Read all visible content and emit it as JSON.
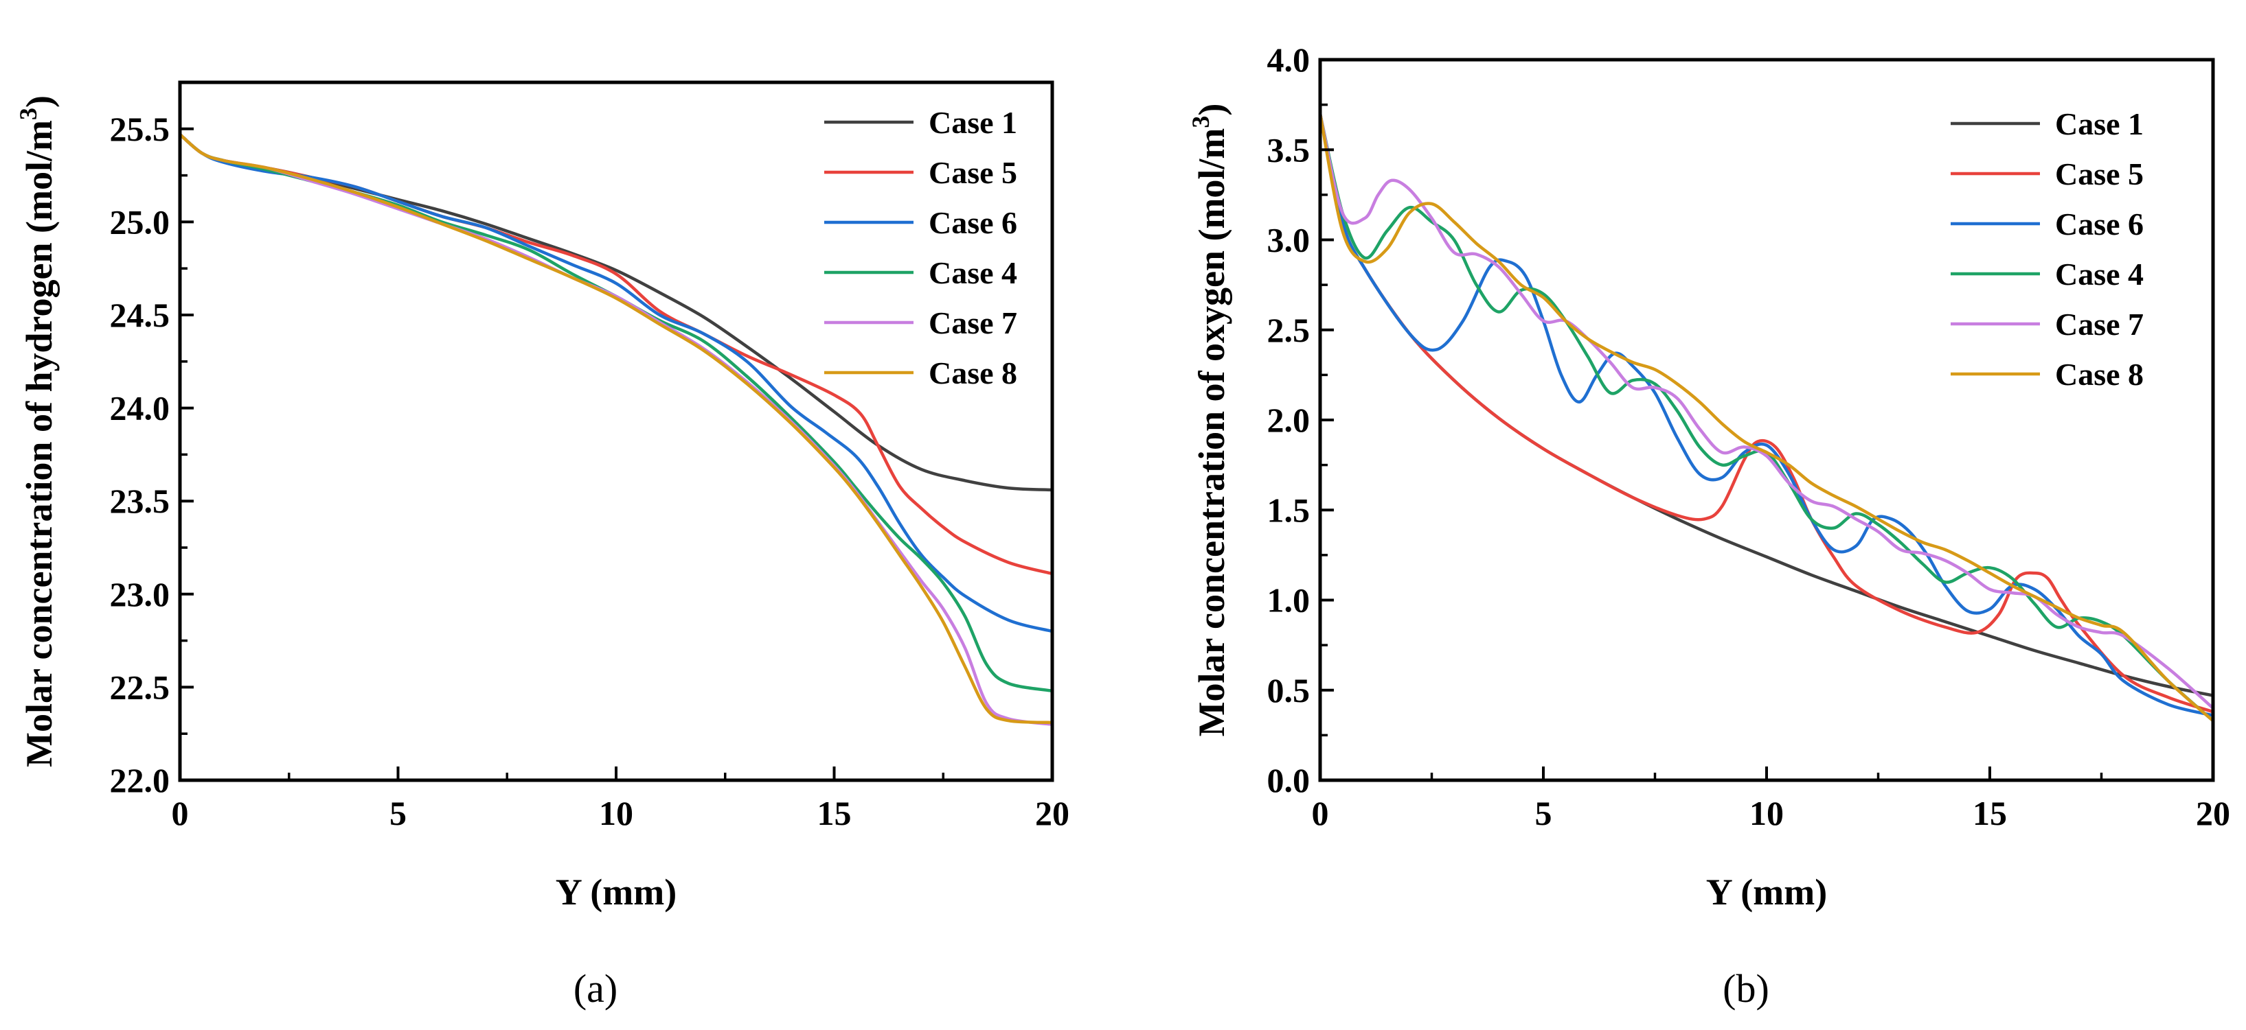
{
  "chart_data": [
    {
      "type": "line",
      "panel_label": "(a)",
      "xlabel": "Y (mm)",
      "ylabel_prefix": "Molar concentration of hydrogen (mol/m",
      "ylabel_sup": "3",
      "ylabel_suffix": ")",
      "xlim": [
        0,
        20
      ],
      "ylim": [
        22.0,
        25.75
      ],
      "xticks": [
        0,
        5,
        10,
        15,
        20
      ],
      "xtick_labels": [
        "0",
        "5",
        "10",
        "15",
        "20"
      ],
      "yticks": [
        22.0,
        22.5,
        23.0,
        23.5,
        24.0,
        24.5,
        25.0,
        25.5
      ],
      "ytick_labels": [
        "22.0",
        "22.5",
        "23.0",
        "23.5",
        "24.0",
        "24.5",
        "25.0",
        "25.5"
      ],
      "legend_position": "top-right",
      "series": [
        {
          "name": "Case 1",
          "color": "#404040",
          "x": [
            0,
            0.5,
            1,
            2,
            3,
            4,
            5,
            6,
            7,
            8,
            9,
            10,
            11,
            12,
            13,
            14,
            15,
            16,
            17,
            18,
            19,
            20
          ],
          "y": [
            25.47,
            25.37,
            25.33,
            25.29,
            25.24,
            25.18,
            25.12,
            25.06,
            24.99,
            24.91,
            24.83,
            24.74,
            24.62,
            24.49,
            24.33,
            24.16,
            23.98,
            23.8,
            23.67,
            23.61,
            23.57,
            23.56
          ]
        },
        {
          "name": "Case 5",
          "color": "#e8423c",
          "x": [
            0,
            0.5,
            1,
            2,
            3,
            4,
            5,
            6,
            7,
            8,
            9,
            10,
            11,
            12,
            13,
            14,
            15,
            15.6,
            16,
            16.5,
            17,
            17.5,
            18,
            19,
            20
          ],
          "y": [
            25.47,
            25.37,
            25.33,
            25.29,
            25.24,
            25.19,
            25.11,
            25.03,
            24.97,
            24.89,
            24.82,
            24.72,
            24.52,
            24.4,
            24.28,
            24.18,
            24.07,
            23.97,
            23.8,
            23.58,
            23.46,
            23.36,
            23.28,
            23.17,
            23.11
          ]
        },
        {
          "name": "Case 6",
          "color": "#1f6fd1",
          "x": [
            0,
            0.5,
            1,
            2,
            3,
            4,
            5,
            6,
            7,
            8,
            9,
            10,
            11,
            12,
            13,
            14,
            14.8,
            15.5,
            16,
            16.5,
            17,
            17.5,
            18,
            19,
            20
          ],
          "y": [
            25.47,
            25.37,
            25.32,
            25.27,
            25.24,
            25.19,
            25.11,
            25.03,
            24.97,
            24.87,
            24.77,
            24.67,
            24.5,
            24.4,
            24.25,
            24.01,
            23.87,
            23.74,
            23.58,
            23.38,
            23.21,
            23.09,
            22.99,
            22.86,
            22.8
          ]
        },
        {
          "name": "Case 4",
          "color": "#1ea366",
          "x": [
            0,
            0.5,
            1,
            2,
            3,
            4,
            5,
            6,
            7,
            8,
            9,
            10,
            11,
            12,
            13,
            14,
            15,
            15.5,
            16,
            16.5,
            17,
            17.5,
            18,
            18.5,
            19,
            20
          ],
          "y": [
            25.47,
            25.37,
            25.33,
            25.28,
            25.22,
            25.16,
            25.09,
            25.0,
            24.93,
            24.85,
            24.72,
            24.6,
            24.47,
            24.36,
            24.17,
            23.95,
            23.71,
            23.57,
            23.43,
            23.3,
            23.19,
            23.06,
            22.88,
            22.62,
            22.52,
            22.48
          ]
        },
        {
          "name": "Case 7",
          "color": "#c87ee0",
          "x": [
            0,
            0.5,
            1,
            2,
            3,
            4,
            5,
            6,
            7,
            8,
            9,
            10,
            11,
            12,
            13,
            14,
            15,
            15.5,
            16,
            16.5,
            17,
            17.5,
            18,
            18.5,
            19,
            20
          ],
          "y": [
            25.47,
            25.37,
            25.33,
            25.29,
            25.22,
            25.15,
            25.07,
            24.99,
            24.91,
            24.81,
            24.7,
            24.6,
            24.46,
            24.32,
            24.14,
            23.93,
            23.69,
            23.55,
            23.39,
            23.23,
            23.07,
            22.92,
            22.71,
            22.41,
            22.33,
            22.3
          ]
        },
        {
          "name": "Case 8",
          "color": "#d79a17",
          "x": [
            0,
            0.5,
            1,
            2,
            3,
            4,
            5,
            6,
            7,
            8,
            9,
            10,
            11,
            12,
            13,
            14,
            15,
            15.5,
            16,
            16.5,
            17,
            17.5,
            18,
            18.5,
            19,
            20
          ],
          "y": [
            25.47,
            25.37,
            25.33,
            25.29,
            25.23,
            25.16,
            25.08,
            24.99,
            24.9,
            24.8,
            24.7,
            24.59,
            24.45,
            24.31,
            24.13,
            23.92,
            23.68,
            23.54,
            23.38,
            23.21,
            23.04,
            22.85,
            22.61,
            22.38,
            22.32,
            22.31
          ]
        }
      ]
    },
    {
      "type": "line",
      "panel_label": "(b)",
      "xlabel": "Y (mm)",
      "ylabel_prefix": "Molar concentration of oxygen (mol/m",
      "ylabel_sup": "3",
      "ylabel_suffix": ")",
      "xlim": [
        0,
        20
      ],
      "ylim": [
        0.0,
        4.0
      ],
      "xticks": [
        0,
        5,
        10,
        15,
        20
      ],
      "xtick_labels": [
        "0",
        "5",
        "10",
        "15",
        "20"
      ],
      "yticks": [
        0.0,
        0.5,
        1.0,
        1.5,
        2.0,
        2.5,
        3.0,
        3.5,
        4.0
      ],
      "ytick_labels": [
        "0.0",
        "0.5",
        "1.0",
        "1.5",
        "2.0",
        "2.5",
        "3.0",
        "3.5",
        "4.0"
      ],
      "legend_position": "top-right",
      "series": [
        {
          "name": "Case 1",
          "color": "#404040",
          "x": [
            0,
            0.5,
            1,
            2,
            3,
            4,
            5,
            6,
            7,
            8,
            9,
            10,
            11,
            12,
            13,
            14,
            15,
            16,
            17,
            18,
            19,
            20
          ],
          "y": [
            3.7,
            3.1,
            2.84,
            2.48,
            2.22,
            2.01,
            1.84,
            1.7,
            1.57,
            1.45,
            1.34,
            1.24,
            1.14,
            1.05,
            0.96,
            0.88,
            0.8,
            0.72,
            0.65,
            0.58,
            0.52,
            0.47
          ]
        },
        {
          "name": "Case 5",
          "color": "#e8423c",
          "x": [
            0,
            0.5,
            1,
            2,
            3,
            4,
            5,
            6,
            7,
            8,
            8.6,
            9,
            9.5,
            9.8,
            10.2,
            10.6,
            11,
            11.5,
            12,
            13,
            14,
            14.7,
            15.2,
            15.6,
            16,
            16.3,
            16.6,
            17,
            18,
            19,
            20
          ],
          "y": [
            3.7,
            3.1,
            2.84,
            2.48,
            2.22,
            2.01,
            1.84,
            1.7,
            1.57,
            1.47,
            1.45,
            1.52,
            1.78,
            1.88,
            1.85,
            1.68,
            1.45,
            1.24,
            1.08,
            0.94,
            0.85,
            0.82,
            0.92,
            1.12,
            1.15,
            1.12,
            1.0,
            0.86,
            0.58,
            0.46,
            0.38
          ]
        },
        {
          "name": "Case 6",
          "color": "#1f6fd1",
          "x": [
            0,
            0.5,
            1,
            2,
            2.6,
            3.2,
            3.8,
            4.2,
            4.6,
            5.0,
            5.4,
            5.8,
            6.2,
            6.6,
            7.0,
            7.5,
            8.0,
            8.5,
            9.0,
            9.5,
            10.0,
            10.5,
            11.0,
            11.5,
            12.0,
            12.4,
            12.8,
            13.2,
            13.6,
            14.0,
            14.5,
            15.0,
            15.5,
            16.0,
            16.5,
            17.0,
            17.5,
            18.0,
            19.0,
            20.0
          ],
          "y": [
            3.7,
            3.1,
            2.84,
            2.48,
            2.39,
            2.55,
            2.85,
            2.88,
            2.8,
            2.55,
            2.25,
            2.1,
            2.25,
            2.37,
            2.3,
            2.15,
            1.9,
            1.7,
            1.68,
            1.82,
            1.86,
            1.7,
            1.45,
            1.28,
            1.3,
            1.45,
            1.45,
            1.38,
            1.25,
            1.08,
            0.94,
            0.95,
            1.08,
            1.06,
            0.95,
            0.8,
            0.7,
            0.55,
            0.42,
            0.36
          ]
        },
        {
          "name": "Case 4",
          "color": "#1ea366",
          "x": [
            0,
            0.5,
            1,
            1.5,
            2,
            2.5,
            3,
            3.5,
            4,
            4.5,
            5,
            5.5,
            6,
            6.5,
            7,
            7.5,
            8,
            8.5,
            9,
            9.5,
            10,
            10.5,
            11,
            11.5,
            12,
            12.5,
            13,
            13.5,
            14,
            14.5,
            15,
            15.5,
            16,
            16.5,
            17,
            17.5,
            18,
            19,
            20
          ],
          "y": [
            3.7,
            3.15,
            2.9,
            3.05,
            3.18,
            3.1,
            3.0,
            2.75,
            2.6,
            2.72,
            2.7,
            2.55,
            2.35,
            2.15,
            2.22,
            2.2,
            2.05,
            1.85,
            1.75,
            1.8,
            1.82,
            1.65,
            1.45,
            1.4,
            1.48,
            1.42,
            1.32,
            1.2,
            1.1,
            1.15,
            1.18,
            1.12,
            0.98,
            0.85,
            0.9,
            0.88,
            0.8,
            0.55,
            0.33
          ]
        },
        {
          "name": "Case 7",
          "color": "#c87ee0",
          "x": [
            0,
            0.5,
            1,
            1.3,
            1.6,
            2,
            2.5,
            3,
            3.5,
            4,
            4.5,
            5,
            5.5,
            6,
            6.5,
            7,
            7.5,
            8,
            8.5,
            9,
            9.5,
            10,
            10.5,
            11,
            11.5,
            12,
            12.5,
            13,
            13.5,
            14,
            14.5,
            15,
            15.5,
            16,
            16.5,
            17,
            17.5,
            18,
            19,
            20
          ],
          "y": [
            3.7,
            3.15,
            3.12,
            3.25,
            3.33,
            3.28,
            3.12,
            2.93,
            2.92,
            2.85,
            2.7,
            2.55,
            2.55,
            2.45,
            2.32,
            2.18,
            2.18,
            2.12,
            1.95,
            1.82,
            1.85,
            1.8,
            1.65,
            1.55,
            1.52,
            1.45,
            1.38,
            1.28,
            1.26,
            1.22,
            1.15,
            1.06,
            1.04,
            1.02,
            0.92,
            0.85,
            0.82,
            0.8,
            0.62,
            0.4
          ]
        },
        {
          "name": "Case 8",
          "color": "#d79a17",
          "x": [
            0,
            0.5,
            1,
            1.5,
            2,
            2.5,
            3,
            3.5,
            4,
            4.5,
            5,
            5.5,
            6,
            6.5,
            7,
            7.5,
            8,
            8.5,
            9,
            9.5,
            10,
            10.5,
            11,
            11.5,
            12,
            12.5,
            13,
            13.5,
            14,
            14.5,
            15,
            15.5,
            16,
            16.5,
            17,
            17.5,
            18,
            19,
            20
          ],
          "y": [
            3.7,
            3.05,
            2.88,
            2.95,
            3.15,
            3.2,
            3.1,
            2.98,
            2.88,
            2.75,
            2.68,
            2.55,
            2.45,
            2.38,
            2.32,
            2.28,
            2.2,
            2.1,
            1.98,
            1.88,
            1.82,
            1.75,
            1.65,
            1.58,
            1.52,
            1.45,
            1.38,
            1.32,
            1.28,
            1.22,
            1.15,
            1.08,
            1.02,
            0.96,
            0.9,
            0.86,
            0.82,
            0.55,
            0.33
          ]
        }
      ]
    }
  ]
}
